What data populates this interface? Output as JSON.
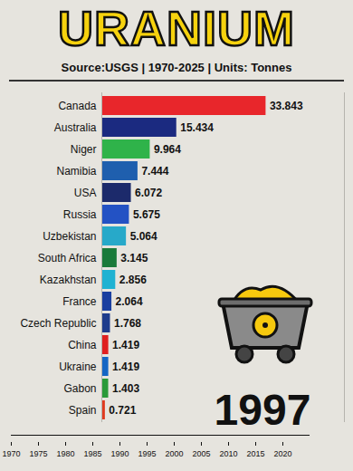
{
  "chart_data": [
    {
      "type": "bar",
      "title": "URANIUM",
      "subtitle": "Source:USGS | 1970-2025 | Units: Tonnes",
      "orientation": "horizontal",
      "categories": [
        "Canada",
        "Australia",
        "Niger",
        "Namibia",
        "USA",
        "Russia",
        "Uzbekistan",
        "South Africa",
        "Kazakhstan",
        "France",
        "Czech Republic",
        "China",
        "Ukraine",
        "Gabon",
        "Spain"
      ],
      "values": [
        33.843,
        15.434,
        9.964,
        7.444,
        6.072,
        5.675,
        5.064,
        3.145,
        2.856,
        2.064,
        1.768,
        1.419,
        1.419,
        1.403,
        0.721
      ],
      "colors": [
        "#e8262b",
        "#1b2a80",
        "#2fb34a",
        "#1f5fae",
        "#1c2a6b",
        "#2352c4",
        "#27a9c9",
        "#1a7a3a",
        "#1fb2d2",
        "#1a3fa0",
        "#1e3c8c",
        "#e02020",
        "#1466c4",
        "#2a9a3a",
        "#e03a1e"
      ],
      "data_labels": true,
      "xlim": [
        0,
        50
      ],
      "xticks": [],
      "tick_labels": "y"
    },
    {
      "type": "timeline",
      "xlim": [
        1970,
        2025
      ],
      "xticks": [
        1970,
        1975,
        1980,
        1985,
        1990,
        1995,
        2000,
        2005,
        2010,
        2015,
        2020
      ],
      "current": 1997
    }
  ]
}
